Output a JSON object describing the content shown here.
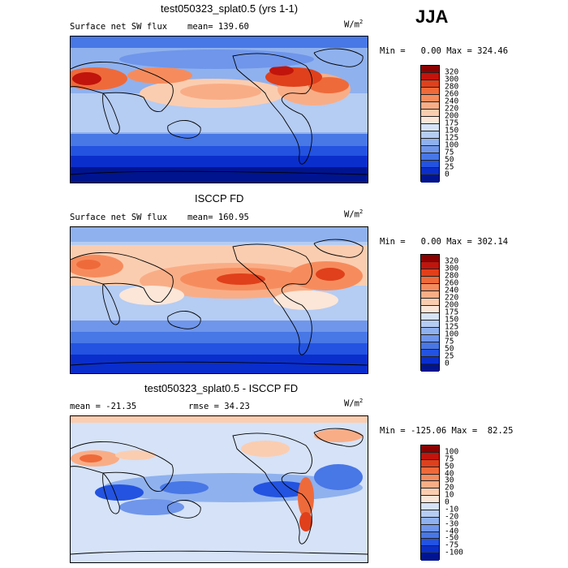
{
  "season": "JJA",
  "panels": [
    {
      "title": "test050323_splat0.5 (yrs 1-1)",
      "left_label": "Surface net SW flux",
      "mean_label": "mean= 139.60",
      "units_main": "W/m",
      "units_exp": "2",
      "min_label": "Min =",
      "min_value": "0.00",
      "max_label": "Max =",
      "max_value": "324.46",
      "colorbar": {
        "ticks": [
          "320",
          "300",
          "280",
          "260",
          "240",
          "220",
          "200",
          "175",
          "150",
          "125",
          "100",
          "75",
          "50",
          "25",
          "0"
        ],
        "colors": [
          "#8b0000",
          "#c1140c",
          "#e0401b",
          "#ef6a3a",
          "#f68c5d",
          "#f9ad86",
          "#fbcdb0",
          "#fbe6d8",
          "#d5e2f7",
          "#b5ccf3",
          "#8fb1ee",
          "#6f96ea",
          "#4877e6",
          "#2353e0",
          "#0a2ecb",
          "#00148f"
        ]
      }
    },
    {
      "title": "ISCCP FD",
      "left_label": "Surface net SW flux",
      "mean_label": "mean= 160.95",
      "units_main": "W/m",
      "units_exp": "2",
      "min_label": "Min =",
      "min_value": "0.00",
      "max_label": "Max =",
      "max_value": "302.14",
      "colorbar": {
        "ticks": [
          "320",
          "300",
          "280",
          "260",
          "240",
          "220",
          "200",
          "175",
          "150",
          "125",
          "100",
          "75",
          "50",
          "25",
          "0"
        ],
        "colors": [
          "#8b0000",
          "#c1140c",
          "#e0401b",
          "#ef6a3a",
          "#f68c5d",
          "#f9ad86",
          "#fbcdb0",
          "#fbe6d8",
          "#d5e2f7",
          "#b5ccf3",
          "#8fb1ee",
          "#6f96ea",
          "#4877e6",
          "#2353e0",
          "#0a2ecb",
          "#00148f"
        ]
      }
    },
    {
      "title": "test050323_splat0.5 - ISCCP FD",
      "left_label": "mean = -21.35",
      "mean_label": "rmse =  34.23",
      "units_main": "W/m",
      "units_exp": "2",
      "min_label": "Min =",
      "min_value": "-125.06",
      "max_label": "Max =",
      "max_value": "82.25",
      "colorbar": {
        "ticks": [
          "100",
          "75",
          "50",
          "40",
          "30",
          "20",
          "10",
          "0",
          "-10",
          "-20",
          "-30",
          "-40",
          "-50",
          "-75",
          "-100"
        ],
        "colors": [
          "#8b0000",
          "#c1140c",
          "#e0401b",
          "#ef6a3a",
          "#f68c5d",
          "#f9ad86",
          "#fbcdb0",
          "#fbe6d8",
          "#d5e2f7",
          "#b5ccf3",
          "#8fb1ee",
          "#6f96ea",
          "#4877e6",
          "#2353e0",
          "#0a2ecb",
          "#00148f"
        ]
      }
    }
  ]
}
